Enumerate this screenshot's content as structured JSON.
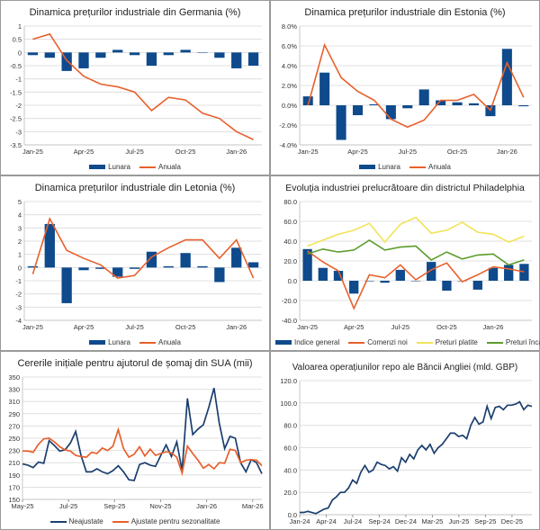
{
  "colors": {
    "bar": "#0e4a8c",
    "orange": "#e8602c",
    "yellow": "#f2e35a",
    "green": "#5c9c2e",
    "navy": "#1a3f6e",
    "grid": "#d9d9d9"
  },
  "chart_data": [
    {
      "id": "de",
      "type": "bar+line",
      "title": "Dinamica prețurilor industriale din Germania (%)",
      "categories": [
        "Jan-25",
        "Feb-25",
        "Mar-25",
        "Apr-25",
        "May-25",
        "Jun-25",
        "Jul-25",
        "Aug-25",
        "Sep-25",
        "Oct-25",
        "Nov-25",
        "Dec-25",
        "Jan-26",
        "Feb-26"
      ],
      "xticks": [
        "Jan-25",
        "Apr-25",
        "Jul-25",
        "Oct-25",
        "Jan-26"
      ],
      "ylim": [
        -3.5,
        1
      ],
      "ystep": 0.5,
      "yformat": "plain",
      "grid": true,
      "legend": "bottom",
      "series": [
        {
          "name": "Lunara",
          "kind": "bar",
          "color": "#0e4a8c",
          "values": [
            -0.1,
            -0.2,
            -0.7,
            -0.6,
            -0.2,
            0.1,
            -0.1,
            -0.5,
            -0.1,
            0.1,
            0,
            -0.2,
            -0.6,
            -0.5
          ]
        },
        {
          "name": "Anuala",
          "kind": "line",
          "color": "#e8602c",
          "values": [
            0.5,
            0.7,
            -0.3,
            -0.9,
            -1.2,
            -1.3,
            -1.5,
            -2.2,
            -1.7,
            -1.8,
            -2.3,
            -2.5,
            -3.0,
            -3.3
          ]
        }
      ]
    },
    {
      "id": "ee",
      "type": "bar+line",
      "title": "Dinamica prețurilor industriale din Estonia (%)",
      "categories": [
        "Jan-25",
        "Feb-25",
        "Mar-25",
        "Apr-25",
        "May-25",
        "Jun-25",
        "Jul-25",
        "Aug-25",
        "Sep-25",
        "Oct-25",
        "Nov-25",
        "Dec-25",
        "Jan-26",
        "Feb-26"
      ],
      "xticks": [
        "Jan-25",
        "Apr-25",
        "Jul-25",
        "Oct-25",
        "Jan-26"
      ],
      "ylim": [
        -4,
        8
      ],
      "ystep": 2,
      "yformat": "percent",
      "grid": true,
      "legend": "bottom",
      "series": [
        {
          "name": "Lunara",
          "kind": "bar",
          "color": "#0e4a8c",
          "values": [
            0.9,
            3.3,
            -3.5,
            -1.0,
            0.1,
            -1.4,
            -0.3,
            1.6,
            0.5,
            0.3,
            0.2,
            -1.1,
            5.7,
            -0.1
          ]
        },
        {
          "name": "Anuala",
          "kind": "line",
          "color": "#e8602c",
          "values": [
            0.0,
            6.1,
            2.8,
            1.4,
            0.5,
            -1.4,
            -2.2,
            -1.5,
            0.5,
            0.5,
            1.1,
            -0.5,
            4.3,
            0.8
          ]
        }
      ]
    },
    {
      "id": "lv",
      "type": "bar+line",
      "title": "Dinamica prețurilor industriale din Letonia (%)",
      "categories": [
        "Jan-25",
        "Feb-25",
        "Mar-25",
        "Apr-25",
        "May-25",
        "Jun-25",
        "Jul-25",
        "Aug-25",
        "Sep-25",
        "Oct-25",
        "Nov-25",
        "Dec-25",
        "Jan-26",
        "Feb-26"
      ],
      "xticks": [
        "Jan-25",
        "Apr-25",
        "Jul-25",
        "Oct-25",
        "Jan-26"
      ],
      "ylim": [
        -4,
        5
      ],
      "ystep": 1,
      "yformat": "plain",
      "grid": true,
      "legend": "bottom",
      "series": [
        {
          "name": "Lunara",
          "kind": "bar",
          "color": "#0e4a8c",
          "values": [
            0.1,
            3.3,
            -2.7,
            -0.2,
            -0.1,
            -0.7,
            -0.1,
            1.2,
            0.1,
            1.1,
            0.1,
            -1.1,
            1.5,
            0.4
          ]
        },
        {
          "name": "Anuala",
          "kind": "line",
          "color": "#e8602c",
          "values": [
            -0.5,
            3.7,
            1.3,
            0.7,
            0.2,
            -0.8,
            -0.6,
            0.8,
            1.5,
            2.1,
            2.1,
            0.7,
            2.1,
            -0.8
          ]
        }
      ]
    },
    {
      "id": "ph",
      "type": "bar+line",
      "title": "Evoluția industriei prelucrătoare din districtul Philadelphia",
      "categories": [
        "Jan-25",
        "Feb-25",
        "Mar-25",
        "Apr-25",
        "May-25",
        "Jun-25",
        "Jul-25",
        "Aug-25",
        "Sep-25",
        "Oct-25",
        "Nov-25",
        "Dec-25",
        "Jan-26",
        "Feb-26",
        "Mar-26"
      ],
      "xticks": [
        "Jan-25",
        "Apr-25",
        "Jul-25",
        "Oct-25",
        "Jan-26"
      ],
      "ylim": [
        -40,
        80
      ],
      "ystep": 20,
      "yformat": "fixed1",
      "grid": true,
      "legend": "bottom",
      "series": [
        {
          "name": "Indice general",
          "kind": "bar",
          "color": "#0e4a8c",
          "values": [
            32,
            13,
            10,
            -13,
            -0.5,
            -2,
            11,
            0,
            19,
            -10,
            0,
            -9,
            13,
            16,
            17
          ]
        },
        {
          "name": "Comenzi noi",
          "kind": "line",
          "color": "#e8602c",
          "values": [
            30,
            19,
            10,
            -28,
            6,
            3,
            16,
            1,
            11,
            18,
            -1,
            6,
            14,
            12,
            9
          ]
        },
        {
          "name": "Preturi platite",
          "kind": "line",
          "color": "#f2e35a",
          "values": [
            35,
            41,
            47,
            51,
            58,
            39,
            57,
            64,
            48,
            51,
            59,
            49,
            47,
            39,
            45
          ]
        },
        {
          "name": "Preturi încasate",
          "kind": "line",
          "color": "#5c9c2e",
          "values": [
            27,
            32,
            29,
            31,
            41,
            31,
            34,
            35,
            21,
            29,
            22,
            26,
            27,
            16,
            21
          ]
        }
      ]
    },
    {
      "id": "us",
      "type": "line",
      "title": "Cererile inițiale pentru ajutorul de șomaj din SUA (mii)",
      "xticks": [
        "May-25",
        "Jul-25",
        "Sep-25",
        "Nov-25",
        "Jan-26",
        "Mar-26"
      ],
      "ylim": [
        150,
        350
      ],
      "ystep": 20,
      "yformat": "plain",
      "grid": true,
      "legend": "bottom",
      "series": [
        {
          "name": "Neajustate",
          "kind": "line",
          "color": "#1a3f6e",
          "values": [
            208,
            206,
            202,
            211,
            209,
            246,
            238,
            229,
            231,
            242,
            261,
            222,
            195,
            195,
            200,
            195,
            192,
            197,
            205,
            195,
            182,
            181,
            207,
            210,
            206,
            204,
            222,
            239,
            220,
            244,
            197,
            315,
            256,
            265,
            272,
            300,
            332,
            274,
            233,
            253,
            250,
            210,
            195,
            215,
            210,
            192
          ]
        },
        {
          "name": "Ajustate pentru sezonalitate",
          "kind": "line",
          "color": "#e8602c",
          "values": [
            229,
            229,
            227,
            240,
            249,
            250,
            244,
            236,
            231,
            229,
            222,
            220,
            219,
            227,
            225,
            234,
            230,
            237,
            264,
            233,
            219,
            224,
            236,
            221,
            232,
            222,
            225,
            228,
            226,
            219,
            193,
            237,
            225,
            214,
            201,
            207,
            200,
            210,
            209,
            232,
            230,
            210,
            214,
            215,
            214,
            205
          ]
        }
      ]
    },
    {
      "id": "uk",
      "type": "line",
      "title": "Valoarea operațiunilor repo ale Băncii Angliei (mld. GBP)",
      "xticks": [
        "Jan-24",
        "Apr-24",
        "Jul-24",
        "Sep-24",
        "Dec-24",
        "Mar-25",
        "Jun-25",
        "Sep-25",
        "Dec-25"
      ],
      "ylim": [
        0,
        120
      ],
      "ystep": 20,
      "yformat": "fixed1",
      "grid": true,
      "legend": "none",
      "series": [
        {
          "kind": "line",
          "color": "#1a3f6e",
          "values": [
            2,
            2,
            3,
            2,
            1,
            3,
            5,
            6,
            13,
            16,
            20,
            20,
            24,
            31,
            28,
            38,
            44,
            38,
            40,
            47,
            45,
            44,
            41,
            43,
            39,
            51,
            47,
            54,
            50,
            58,
            62,
            58,
            63,
            55,
            60,
            63,
            68,
            73,
            73,
            70,
            71,
            68,
            80,
            87,
            81,
            83,
            97,
            86,
            96,
            97,
            94,
            98,
            98,
            99,
            101,
            94,
            98,
            97
          ]
        }
      ]
    }
  ]
}
